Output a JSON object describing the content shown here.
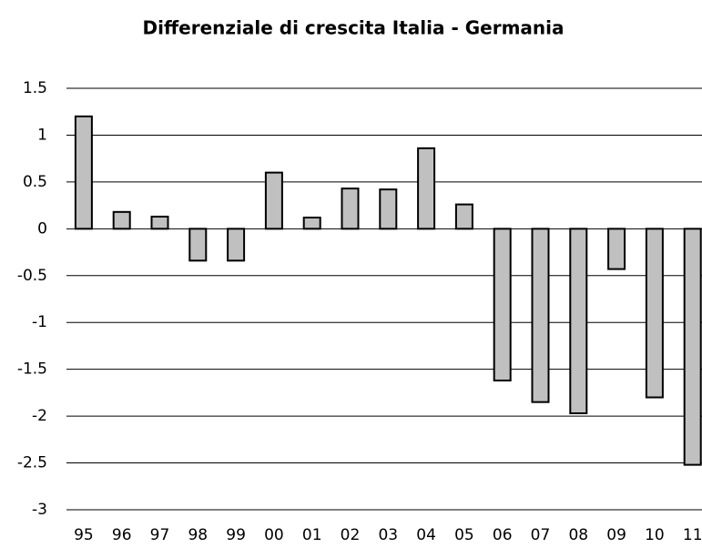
{
  "chart_data": {
    "type": "bar",
    "title": "Differenziale di crescita Italia - Germania",
    "categories": [
      "95",
      "96",
      "97",
      "98",
      "99",
      "00",
      "01",
      "02",
      "03",
      "04",
      "05",
      "06",
      "07",
      "08",
      "09",
      "10",
      "11"
    ],
    "values": [
      1.2,
      0.18,
      0.13,
      -0.34,
      -0.34,
      0.6,
      0.12,
      0.43,
      0.42,
      0.86,
      0.26,
      -1.62,
      -1.85,
      -1.97,
      -0.43,
      -1.8,
      -2.52
    ],
    "color": "#c0c0c0",
    "ylim": [
      -3,
      1.5
    ],
    "yticks": [
      -3,
      -2.5,
      -2,
      -1.5,
      -1,
      -0.5,
      0,
      0.5,
      1,
      1.5
    ],
    "grid": true
  }
}
